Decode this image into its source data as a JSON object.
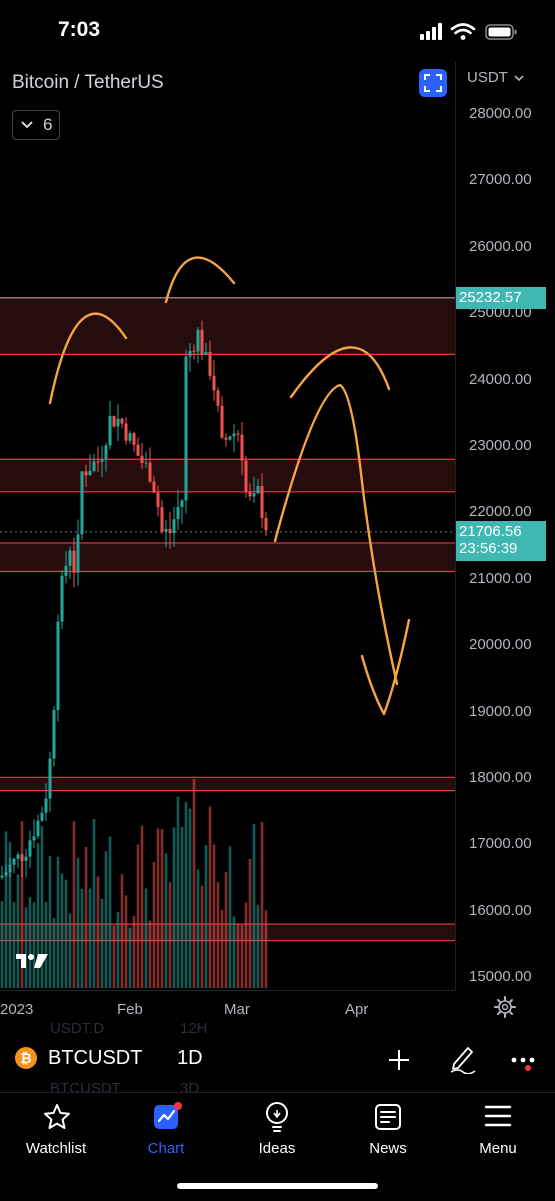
{
  "status_bar": {
    "time": "7:03"
  },
  "chart_header": {
    "title": "Bitcoin / TetherUS",
    "interval_chip": "6",
    "currency": "USDT"
  },
  "price_axis": {
    "ticks": [
      "28000.00",
      "27000.00",
      "26000.00",
      "25000.00",
      "24000.00",
      "23000.00",
      "22000.00",
      "21000.00",
      "20000.00",
      "19000.00",
      "18000.00",
      "17000.00",
      "16000.00",
      "15000.00"
    ],
    "tick_values": [
      28000,
      27000,
      26000,
      25000,
      24000,
      23000,
      22000,
      21000,
      20000,
      19000,
      18000,
      17000,
      16000,
      15000
    ],
    "range": [
      14950,
      28200
    ]
  },
  "price_tags": {
    "high": "25232.57",
    "last": "21706.56",
    "countdown": "23:56:39"
  },
  "time_axis": {
    "labels": [
      "2023",
      "Feb",
      "Mar",
      "Apr"
    ]
  },
  "zones": [
    {
      "from": 24380,
      "to": 25232
    },
    {
      "from": 22310,
      "to": 22800
    },
    {
      "from": 21110,
      "to": 21540
    },
    {
      "from": 17810,
      "to": 18010
    },
    {
      "from": 15550,
      "to": 15800
    }
  ],
  "symbol_row": {
    "symbol": "BTCUSDT",
    "interval": "1D",
    "ghost_top_left": "USDT.D",
    "ghost_top_right": "12H",
    "ghost_bottom_left": "BTCUSDT",
    "ghost_bottom_right": "3D"
  },
  "nav": [
    {
      "key": "watchlist",
      "label": "Watchlist",
      "icon": "star-icon"
    },
    {
      "key": "chart",
      "label": "Chart",
      "icon": "chart-icon",
      "active": true
    },
    {
      "key": "ideas",
      "label": "Ideas",
      "icon": "lightbulb-icon"
    },
    {
      "key": "news",
      "label": "News",
      "icon": "newspaper-icon"
    },
    {
      "key": "menu",
      "label": "Menu",
      "icon": "hamburger-icon"
    }
  ],
  "colors": {
    "up": "#26a69a",
    "down": "#ef5350",
    "accent": "#2962ff",
    "drawing": "#f7a541",
    "price_tag": "#3fb8b4"
  }
}
